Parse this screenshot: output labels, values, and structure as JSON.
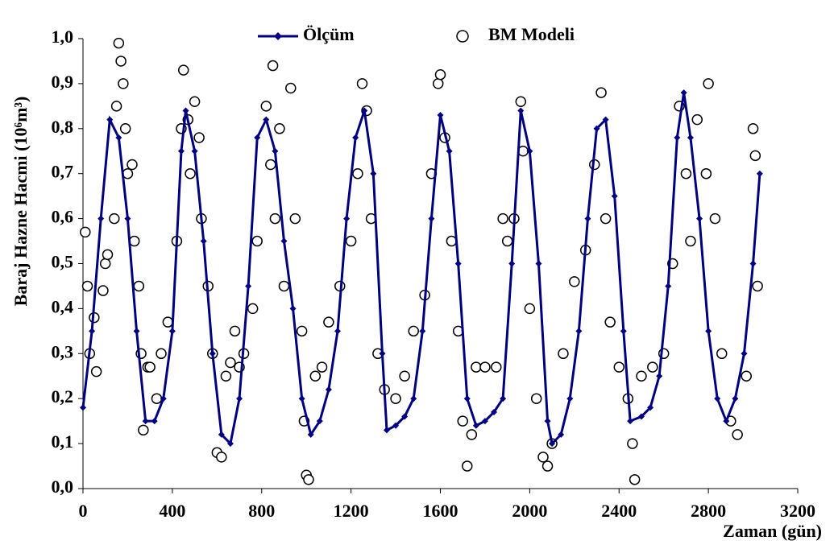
{
  "chart_data": {
    "type": "line_scatter",
    "x_label": "Zaman (gün)",
    "y_label": "Baraj Hazne Hacmi (10⁶m³)",
    "xlim": [
      0,
      3200
    ],
    "xticks": [
      0,
      400,
      800,
      1200,
      1600,
      2000,
      2400,
      2800,
      3200
    ],
    "ylim": [
      0,
      1
    ],
    "yticks": [
      {
        "value": 0,
        "label": "0,0"
      },
      {
        "value": 0.1,
        "label": "0,1"
      },
      {
        "value": 0.2,
        "label": "0,2"
      },
      {
        "value": 0.3,
        "label": "0,3"
      },
      {
        "value": 0.4,
        "label": "0,4"
      },
      {
        "value": 0.5,
        "label": "0,5"
      },
      {
        "value": 0.6,
        "label": "0,6"
      },
      {
        "value": 0.7,
        "label": "0,7"
      },
      {
        "value": 0.8,
        "label": "0,8"
      },
      {
        "value": 0.9,
        "label": "0,9"
      },
      {
        "value": 1,
        "label": "1,0"
      }
    ],
    "series": [
      {
        "name": "Ölçüm",
        "kind": "line",
        "color": "#000080",
        "x": [
          0,
          40,
          80,
          120,
          160,
          200,
          240,
          280,
          320,
          360,
          400,
          440,
          460,
          500,
          540,
          580,
          620,
          660,
          700,
          740,
          780,
          820,
          860,
          900,
          940,
          980,
          1020,
          1060,
          1100,
          1140,
          1180,
          1220,
          1260,
          1300,
          1340,
          1360,
          1400,
          1440,
          1480,
          1520,
          1560,
          1600,
          1640,
          1680,
          1720,
          1760,
          1800,
          1840,
          1880,
          1920,
          1960,
          2000,
          2040,
          2080,
          2100,
          2140,
          2180,
          2220,
          2260,
          2300,
          2340,
          2380,
          2420,
          2450,
          2500,
          2540,
          2580,
          2620,
          2660,
          2690,
          2720,
          2760,
          2800,
          2840,
          2880,
          2920,
          2960,
          3000,
          3030
        ],
        "values": [
          0.18,
          0.35,
          0.6,
          0.82,
          0.78,
          0.6,
          0.35,
          0.15,
          0.15,
          0.2,
          0.35,
          0.75,
          0.84,
          0.75,
          0.55,
          0.3,
          0.12,
          0.1,
          0.2,
          0.45,
          0.78,
          0.82,
          0.75,
          0.55,
          0.4,
          0.2,
          0.12,
          0.15,
          0.22,
          0.35,
          0.6,
          0.78,
          0.84,
          0.7,
          0.3,
          0.13,
          0.14,
          0.16,
          0.2,
          0.35,
          0.6,
          0.83,
          0.75,
          0.5,
          0.2,
          0.14,
          0.15,
          0.17,
          0.2,
          0.5,
          0.84,
          0.75,
          0.5,
          0.15,
          0.1,
          0.12,
          0.2,
          0.35,
          0.6,
          0.8,
          0.82,
          0.65,
          0.35,
          0.15,
          0.16,
          0.18,
          0.25,
          0.45,
          0.78,
          0.88,
          0.78,
          0.6,
          0.35,
          0.2,
          0.15,
          0.2,
          0.3,
          0.5,
          0.7
        ]
      },
      {
        "name": "BM Modeli",
        "kind": "scatter",
        "color": "#000000",
        "x": [
          10,
          20,
          30,
          50,
          60,
          90,
          100,
          110,
          140,
          150,
          160,
          170,
          180,
          190,
          200,
          220,
          230,
          250,
          260,
          270,
          290,
          300,
          330,
          350,
          380,
          420,
          440,
          450,
          470,
          480,
          500,
          520,
          530,
          560,
          580,
          600,
          620,
          640,
          660,
          680,
          700,
          720,
          760,
          780,
          820,
          840,
          850,
          860,
          880,
          900,
          930,
          950,
          980,
          990,
          1000,
          1010,
          1040,
          1070,
          1100,
          1150,
          1200,
          1230,
          1250,
          1270,
          1290,
          1320,
          1350,
          1400,
          1440,
          1480,
          1530,
          1560,
          1590,
          1600,
          1620,
          1650,
          1680,
          1700,
          1720,
          1740,
          1760,
          1800,
          1850,
          1880,
          1900,
          1930,
          1960,
          1970,
          2000,
          2030,
          2060,
          2080,
          2100,
          2150,
          2200,
          2250,
          2290,
          2320,
          2340,
          2360,
          2400,
          2440,
          2460,
          2470,
          2500,
          2550,
          2600,
          2640,
          2670,
          2700,
          2720,
          2750,
          2790,
          2800,
          2830,
          2860,
          2900,
          2930,
          2970,
          3000,
          3010,
          3020
        ],
        "values": [
          0.57,
          0.45,
          0.3,
          0.38,
          0.26,
          0.44,
          0.5,
          0.52,
          0.6,
          0.85,
          0.99,
          0.95,
          0.9,
          0.8,
          0.7,
          0.72,
          0.55,
          0.45,
          0.3,
          0.13,
          0.27,
          0.27,
          0.2,
          0.3,
          0.37,
          0.55,
          0.8,
          0.93,
          0.82,
          0.7,
          0.86,
          0.78,
          0.6,
          0.45,
          0.3,
          0.08,
          0.07,
          0.25,
          0.28,
          0.35,
          0.27,
          0.3,
          0.4,
          0.55,
          0.85,
          0.72,
          0.94,
          0.6,
          0.8,
          0.45,
          0.89,
          0.6,
          0.35,
          0.15,
          0.03,
          0.02,
          0.25,
          0.27,
          0.37,
          0.45,
          0.55,
          0.7,
          0.9,
          0.84,
          0.6,
          0.3,
          0.22,
          0.2,
          0.25,
          0.35,
          0.43,
          0.7,
          0.9,
          0.92,
          0.78,
          0.55,
          0.35,
          0.15,
          0.05,
          0.12,
          0.27,
          0.27,
          0.27,
          0.6,
          0.55,
          0.6,
          0.86,
          0.75,
          0.4,
          0.2,
          0.07,
          0.05,
          0.1,
          0.3,
          0.46,
          0.53,
          0.72,
          0.88,
          0.6,
          0.37,
          0.27,
          0.2,
          0.1,
          0.02,
          0.25,
          0.27,
          0.3,
          0.5,
          0.85,
          0.7,
          0.55,
          0.82,
          0.7,
          0.9,
          0.6,
          0.3,
          0.15,
          0.12,
          0.25,
          0.8,
          0.74,
          0.45
        ]
      }
    ]
  }
}
